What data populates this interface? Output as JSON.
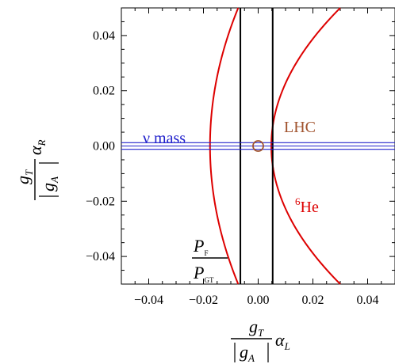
{
  "chart_data": {
    "type": "line",
    "title": "",
    "xlim": [
      -0.05,
      0.05
    ],
    "ylim": [
      -0.05,
      0.05
    ],
    "x_ticks": [
      -0.04,
      -0.02,
      0.0,
      0.02,
      0.04
    ],
    "x_tick_labels": [
      "−0.04",
      "−0.02",
      "0.00",
      "0.02",
      "0.04"
    ],
    "y_ticks": [
      0.04,
      0.02,
      0.0,
      -0.02,
      -0.04
    ],
    "y_tick_labels": [
      "0.04",
      "0.02",
      "0.00",
      "−0.02",
      "−0.04"
    ],
    "xlabel": {
      "numerator_g": "g",
      "numerator_sub": "T",
      "denominator_g": "g",
      "denominator_sub": "A",
      "alpha": "α",
      "alpha_sub": "L"
    },
    "ylabel": {
      "numerator_g": "g",
      "numerator_sub": "T",
      "denominator_g": "g",
      "denominator_sub": "A",
      "alpha": "α",
      "alpha_sub": "R"
    },
    "grid": false,
    "series": [
      {
        "name": "⁶He",
        "color": "#dd0000",
        "curves": [
          {
            "x": [
              -0.0073,
              -0.0129,
              -0.0164,
              -0.0176,
              -0.0164,
              -0.0129,
              -0.0073
            ],
            "y": [
              0.05,
              0.0333,
              0.0167,
              0.0,
              -0.0167,
              -0.0333,
              -0.05
            ]
          },
          {
            "x": [
              0.03,
              0.0137,
              0.0068,
              0.0048,
              0.0068,
              0.0137,
              0.03
            ],
            "y": [
              0.05,
              0.0333,
              0.0167,
              0.0,
              -0.0167,
              -0.0333,
              -0.05
            ]
          }
        ]
      },
      {
        "name": "P_F / P_GT",
        "color": "#000000",
        "vlines": [
          -0.0065,
          0.0053
        ]
      },
      {
        "name": "ν mass",
        "color": "#2222cc",
        "hlines": [
          0.0012,
          0.0,
          -0.0012
        ]
      },
      {
        "name": "LHC",
        "color": "#a0522d",
        "point": {
          "x": 0.0,
          "y": 0.0
        }
      }
    ],
    "annotations": {
      "nu_mass": "ν mass",
      "lhc": "LHC",
      "he_sup": "6",
      "he": "He",
      "pf": "P",
      "pf_sub": "F",
      "pgt": "P",
      "pgt_sub": "GT"
    }
  },
  "colors": {
    "red": "#dd0000",
    "blue": "#2222cc",
    "brown": "#a0522d",
    "black": "#000000"
  }
}
